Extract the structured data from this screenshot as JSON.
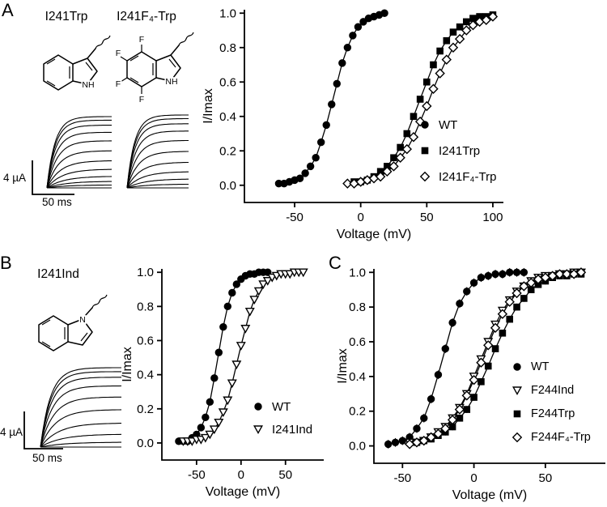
{
  "figure": {
    "panels": {
      "A": {
        "label": "A",
        "structure_labels": [
          "I241Trp",
          "I241F₄-Trp"
        ],
        "scale_current": "4 µA",
        "scale_time": "50 ms",
        "trace_amplitudes": [
          [
            0,
            0.04,
            0.09,
            0.16,
            0.26,
            0.38,
            0.52,
            0.66,
            0.78,
            0.88,
            0.95,
            1.0
          ],
          [
            0,
            0.05,
            0.12,
            0.22,
            0.35,
            0.5,
            0.65,
            0.78,
            0.88,
            0.95,
            1.0
          ]
        ]
      },
      "B": {
        "label": "B",
        "structure_label": "I241Ind",
        "scale_current": "4 µA",
        "scale_time": "50 ms",
        "trace_amplitudes": [
          0,
          0.06,
          0.16,
          0.3,
          0.47,
          0.63,
          0.77,
          0.88,
          0.95,
          1.0
        ]
      },
      "C": {
        "label": "C"
      }
    },
    "atom_labels": {
      "nh": "NH",
      "n": "N",
      "f": "F"
    },
    "colors": {
      "ink": "#000000",
      "background": "#ffffff"
    }
  },
  "chart_data": [
    {
      "id": "A",
      "type": "scatter",
      "title": "",
      "xlabel": "Voltage (mV)",
      "ylabel": "I/Imax",
      "xlim": [
        -88,
        108
      ],
      "ylim": [
        -0.1,
        1.02
      ],
      "xticks": [
        -50,
        0,
        50,
        100
      ],
      "yticks": [
        0,
        0.2,
        0.4,
        0.6,
        0.8,
        1
      ],
      "grid": false,
      "legend_position": "inside-right",
      "series": [
        {
          "name": "WT",
          "marker": "circle-filled",
          "yerr": 0.02,
          "x": [
            -62,
            -58,
            -54,
            -50,
            -46,
            -42,
            -38,
            -34,
            -30,
            -26,
            -22,
            -18,
            -14,
            -10,
            -6,
            -2,
            2,
            6,
            10,
            14,
            18
          ],
          "y": [
            0.01,
            0.01,
            0.02,
            0.03,
            0.04,
            0.07,
            0.11,
            0.16,
            0.25,
            0.35,
            0.47,
            0.59,
            0.71,
            0.8,
            0.87,
            0.92,
            0.95,
            0.97,
            0.98,
            0.99,
            1.0
          ]
        },
        {
          "name": "I241Trp",
          "marker": "square-filled",
          "yerr": 0.015,
          "x": [
            -5,
            0,
            5,
            10,
            15,
            20,
            25,
            30,
            35,
            40,
            45,
            50,
            55,
            60,
            65,
            70,
            75,
            80,
            85,
            90,
            95,
            100
          ],
          "y": [
            0.02,
            0.02,
            0.03,
            0.05,
            0.08,
            0.11,
            0.16,
            0.22,
            0.3,
            0.4,
            0.5,
            0.6,
            0.7,
            0.78,
            0.84,
            0.89,
            0.92,
            0.95,
            0.97,
            0.98,
            0.98,
            0.99
          ]
        },
        {
          "name": "I241F₄-Trp",
          "marker": "diamond-open",
          "yerr": 0.015,
          "x": [
            -10,
            -5,
            0,
            5,
            10,
            15,
            20,
            25,
            30,
            35,
            40,
            45,
            50,
            55,
            60,
            65,
            70,
            75,
            80,
            85,
            90,
            95,
            100
          ],
          "y": [
            0.01,
            0.01,
            0.02,
            0.03,
            0.04,
            0.05,
            0.08,
            0.11,
            0.16,
            0.21,
            0.28,
            0.37,
            0.46,
            0.56,
            0.65,
            0.73,
            0.8,
            0.85,
            0.9,
            0.93,
            0.95,
            0.96,
            0.98
          ]
        }
      ]
    },
    {
      "id": "B",
      "type": "scatter",
      "title": "",
      "xlabel": "Voltage (mV)",
      "ylabel": "I/Imax",
      "xlim": [
        -89,
        93
      ],
      "ylim": [
        -0.1,
        1.02
      ],
      "xticks": [
        -50,
        0,
        50
      ],
      "yticks": [
        0,
        0.2,
        0.4,
        0.6,
        0.8,
        1
      ],
      "grid": false,
      "legend_position": "inside-right",
      "series": [
        {
          "name": "WT",
          "marker": "circle-filled",
          "yerr": 0.02,
          "x": [
            -70,
            -65,
            -60,
            -55,
            -50,
            -45,
            -40,
            -35,
            -30,
            -25,
            -20,
            -15,
            -10,
            -5,
            0,
            5,
            10,
            15,
            20,
            25,
            30
          ],
          "y": [
            0.01,
            0.01,
            0.01,
            0.03,
            0.05,
            0.09,
            0.15,
            0.24,
            0.38,
            0.53,
            0.68,
            0.8,
            0.88,
            0.93,
            0.96,
            0.98,
            0.99,
            0.99,
            1.0,
            1.0,
            1.0
          ]
        },
        {
          "name": "I241Ind",
          "marker": "triangle-down-open",
          "yerr": 0.02,
          "x": [
            -65,
            -60,
            -55,
            -50,
            -45,
            -40,
            -35,
            -30,
            -25,
            -20,
            -15,
            -10,
            -5,
            0,
            5,
            10,
            15,
            20,
            25,
            30,
            35,
            40,
            45,
            50,
            55,
            60,
            65,
            70
          ],
          "y": [
            0.01,
            0.01,
            0.01,
            0.02,
            0.02,
            0.03,
            0.05,
            0.08,
            0.12,
            0.18,
            0.25,
            0.35,
            0.46,
            0.57,
            0.67,
            0.77,
            0.84,
            0.89,
            0.93,
            0.95,
            0.97,
            0.98,
            0.99,
            0.99,
            0.99,
            1.0,
            1.0,
            1.0
          ]
        }
      ]
    },
    {
      "id": "C",
      "type": "scatter",
      "title": "",
      "xlabel": "Voltage (mV)",
      "ylabel": "I/Imax",
      "xlim": [
        -70,
        92
      ],
      "ylim": [
        -0.1,
        1.02
      ],
      "xticks": [
        -50,
        0,
        50
      ],
      "yticks": [
        0,
        0.2,
        0.4,
        0.6,
        0.8,
        1
      ],
      "grid": false,
      "legend_position": "inside-right",
      "series": [
        {
          "name": "WT",
          "marker": "circle-filled",
          "yerr": 0.025,
          "x": [
            -60,
            -55,
            -50,
            -45,
            -40,
            -35,
            -30,
            -25,
            -20,
            -15,
            -10,
            -5,
            0,
            5,
            10,
            15,
            20,
            25,
            30,
            35
          ],
          "y": [
            0.01,
            0.02,
            0.03,
            0.05,
            0.1,
            0.16,
            0.27,
            0.41,
            0.56,
            0.71,
            0.82,
            0.89,
            0.94,
            0.97,
            0.98,
            0.99,
            0.99,
            1.0,
            1.0,
            1.0
          ]
        },
        {
          "name": "F244Ind",
          "marker": "triangle-down-open",
          "yerr": 0.02,
          "x": [
            -45,
            -40,
            -35,
            -30,
            -25,
            -20,
            -15,
            -10,
            -5,
            0,
            5,
            10,
            15,
            20,
            25,
            30,
            35,
            40,
            45,
            50,
            55,
            60,
            65,
            70,
            75
          ],
          "y": [
            0.02,
            0.02,
            0.03,
            0.05,
            0.08,
            0.11,
            0.16,
            0.22,
            0.3,
            0.4,
            0.5,
            0.6,
            0.7,
            0.78,
            0.84,
            0.89,
            0.92,
            0.95,
            0.97,
            0.98,
            0.98,
            0.99,
            0.99,
            1.0,
            1.0
          ]
        },
        {
          "name": "F244Trp",
          "marker": "square-filled",
          "yerr": 0.02,
          "x": [
            -40,
            -35,
            -30,
            -25,
            -20,
            -15,
            -10,
            -5,
            0,
            5,
            10,
            15,
            20,
            25,
            30,
            35,
            40,
            45,
            50,
            55,
            60,
            65,
            70,
            75
          ],
          "y": [
            0.02,
            0.03,
            0.04,
            0.06,
            0.08,
            0.11,
            0.16,
            0.21,
            0.28,
            0.37,
            0.46,
            0.56,
            0.65,
            0.73,
            0.8,
            0.85,
            0.9,
            0.93,
            0.95,
            0.97,
            0.98,
            0.98,
            0.99,
            0.99
          ]
        },
        {
          "name": "F244F₄-Trp",
          "marker": "diamond-open",
          "yerr": 0.02,
          "x": [
            -45,
            -40,
            -35,
            -30,
            -25,
            -20,
            -15,
            -10,
            -5,
            0,
            5,
            10,
            15,
            20,
            25,
            30,
            35,
            40,
            45,
            50,
            55,
            60,
            65,
            70,
            75
          ],
          "y": [
            0.01,
            0.02,
            0.03,
            0.05,
            0.07,
            0.1,
            0.15,
            0.21,
            0.29,
            0.38,
            0.48,
            0.58,
            0.68,
            0.76,
            0.83,
            0.88,
            0.92,
            0.94,
            0.96,
            0.97,
            0.98,
            0.99,
            0.99,
            0.99,
            1.0
          ]
        }
      ]
    }
  ]
}
